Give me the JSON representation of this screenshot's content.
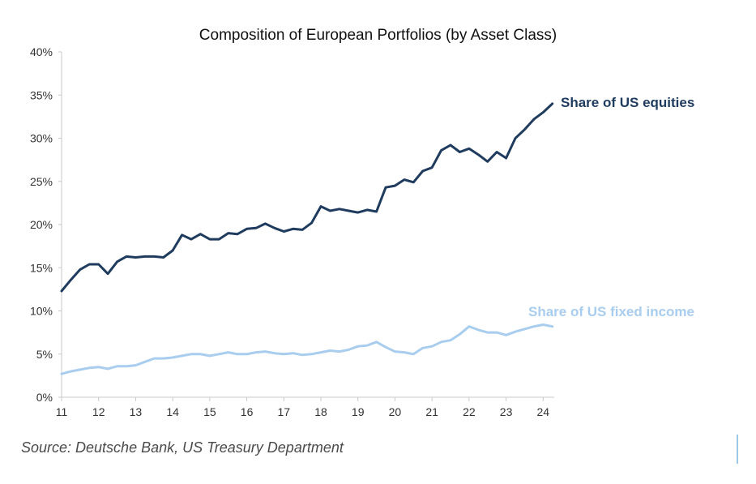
{
  "chart_data": {
    "type": "line",
    "title": "Composition of European Portfolios (by Asset Class)",
    "xlabel": "",
    "ylabel": "",
    "xlim": [
      11,
      24.3
    ],
    "ylim": [
      0,
      40
    ],
    "x_ticks": [
      11,
      12,
      13,
      14,
      15,
      16,
      17,
      18,
      19,
      20,
      21,
      22,
      23,
      24
    ],
    "x_tick_labels": [
      "11",
      "12",
      "13",
      "14",
      "15",
      "16",
      "17",
      "18",
      "19",
      "20",
      "21",
      "22",
      "23",
      "24"
    ],
    "y_ticks": [
      0,
      5,
      10,
      15,
      20,
      25,
      30,
      35,
      40
    ],
    "y_tick_labels": [
      "0%",
      "5%",
      "10%",
      "15%",
      "20%",
      "25%",
      "30%",
      "35%",
      "40%"
    ],
    "grid": false,
    "series": [
      {
        "name": "Share of US equities",
        "label": "Share of US equities",
        "color": "#1f3b5e",
        "x": [
          11,
          11.25,
          11.5,
          11.75,
          12,
          12.25,
          12.5,
          12.75,
          13,
          13.25,
          13.5,
          13.75,
          14,
          14.25,
          14.5,
          14.75,
          15,
          15.25,
          15.5,
          15.75,
          16,
          16.25,
          16.5,
          16.75,
          17,
          17.25,
          17.5,
          17.75,
          18,
          18.25,
          18.5,
          18.75,
          19,
          19.25,
          19.5,
          19.75,
          20,
          20.25,
          20.5,
          20.75,
          21,
          21.25,
          21.5,
          21.75,
          22,
          22.25,
          22.5,
          22.75,
          23,
          23.25,
          23.5,
          23.75,
          24,
          24.25
        ],
        "values": [
          12.3,
          13.6,
          14.8,
          15.4,
          15.4,
          14.3,
          15.7,
          16.3,
          16.2,
          16.3,
          16.3,
          16.2,
          17.0,
          18.8,
          18.3,
          18.9,
          18.3,
          18.3,
          19.0,
          18.9,
          19.5,
          19.6,
          20.1,
          19.6,
          19.2,
          19.5,
          19.4,
          20.2,
          22.1,
          21.6,
          21.8,
          21.6,
          21.4,
          21.7,
          21.5,
          24.3,
          24.5,
          25.2,
          24.9,
          26.2,
          26.6,
          28.6,
          29.2,
          28.4,
          28.8,
          28.1,
          27.3,
          28.4,
          27.7,
          30.0,
          31.0,
          32.2,
          33.0,
          34.0
        ]
      },
      {
        "name": "Share of US fixed income",
        "label": "Share of US fixed income",
        "color": "#a9cdee",
        "x": [
          11,
          11.25,
          11.5,
          11.75,
          12,
          12.25,
          12.5,
          12.75,
          13,
          13.25,
          13.5,
          13.75,
          14,
          14.25,
          14.5,
          14.75,
          15,
          15.25,
          15.5,
          15.75,
          16,
          16.25,
          16.5,
          16.75,
          17,
          17.25,
          17.5,
          17.75,
          18,
          18.25,
          18.5,
          18.75,
          19,
          19.25,
          19.5,
          19.75,
          20,
          20.25,
          20.5,
          20.75,
          21,
          21.25,
          21.5,
          21.75,
          22,
          22.25,
          22.5,
          22.75,
          23,
          23.25,
          23.5,
          23.75,
          24,
          24.25
        ],
        "values": [
          2.7,
          3.0,
          3.2,
          3.4,
          3.5,
          3.3,
          3.6,
          3.6,
          3.7,
          4.1,
          4.5,
          4.5,
          4.6,
          4.8,
          5.0,
          5.0,
          4.8,
          5.0,
          5.2,
          5.0,
          5.0,
          5.2,
          5.3,
          5.1,
          5.0,
          5.1,
          4.9,
          5.0,
          5.2,
          5.4,
          5.3,
          5.5,
          5.9,
          6.0,
          6.4,
          5.8,
          5.3,
          5.2,
          5.0,
          5.7,
          5.9,
          6.4,
          6.6,
          7.3,
          8.2,
          7.8,
          7.5,
          7.5,
          7.2,
          7.6,
          7.9,
          8.2,
          8.4,
          8.2
        ]
      }
    ],
    "source": "Source: Deutsche Bank, US Treasury Department"
  }
}
